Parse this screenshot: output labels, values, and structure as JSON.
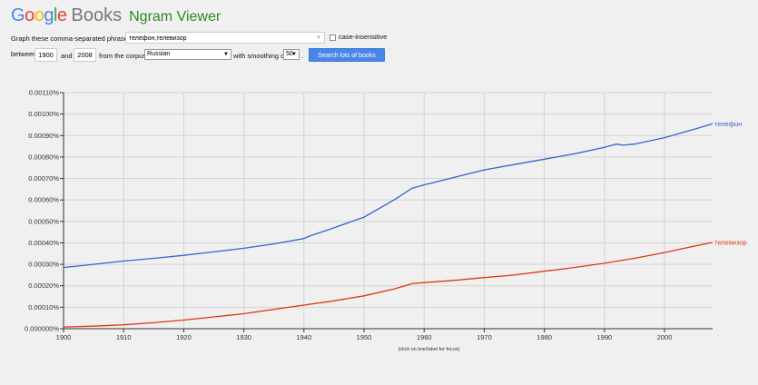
{
  "header": {
    "logo": {
      "G": "G",
      "o1": "o",
      "o2": "o",
      "g": "g",
      "l": "l",
      "e": "e"
    },
    "books": "Books",
    "viewer": "Ngram Viewer",
    "logo_colors": {
      "blue": "#4285f4",
      "red": "#ea4335",
      "yellow": "#fbbc05",
      "green": "#34a853"
    }
  },
  "form": {
    "phrases_label": "Graph these comma-separated phrases:",
    "phrases_value": "телефон,телевизор",
    "case_insensitive_label": "case-insensitive",
    "case_insensitive_checked": false,
    "between_label": "between",
    "start_year": "1900",
    "and_label": "and",
    "end_year": "2008",
    "corpus_label": "from the corpus",
    "corpus_value": "Russian",
    "smoothing_label": "with smoothing of",
    "smoothing_value": "50",
    "period": ".",
    "search_button": "Search lots of books"
  },
  "chart_data": {
    "type": "line",
    "x_range": [
      1900,
      2008
    ],
    "ylim": [
      0,
      0.0011
    ],
    "y_ticks": [
      "0.000000%",
      "0.00010%",
      "0.00020%",
      "0.00030%",
      "0.00040%",
      "0.00050%",
      "0.00060%",
      "0.00070%",
      "0.00080%",
      "0.00090%",
      "0.00100%",
      "0.00110%"
    ],
    "x_ticks": [
      "1900",
      "1910",
      "1920",
      "1930",
      "1940",
      "1950",
      "1960",
      "1970",
      "1980",
      "1990",
      "2000"
    ],
    "x_tick_values": [
      1900,
      1910,
      1920,
      1930,
      1940,
      1950,
      1960,
      1970,
      1980,
      1990,
      2000
    ],
    "note": "(click on line/label for focus)",
    "series": [
      {
        "name": "телефон",
        "color": "#3366cc",
        "points": [
          [
            1900,
            0.000285
          ],
          [
            1905,
            0.0003
          ],
          [
            1910,
            0.000315
          ],
          [
            1915,
            0.000328
          ],
          [
            1920,
            0.000342
          ],
          [
            1925,
            0.000358
          ],
          [
            1930,
            0.000375
          ],
          [
            1935,
            0.000395
          ],
          [
            1940,
            0.00042
          ],
          [
            1941,
            0.000432
          ],
          [
            1945,
            0.00047
          ],
          [
            1950,
            0.00052
          ],
          [
            1955,
            0.0006
          ],
          [
            1958,
            0.000655
          ],
          [
            1960,
            0.00067
          ],
          [
            1965,
            0.000705
          ],
          [
            1970,
            0.00074
          ],
          [
            1975,
            0.000765
          ],
          [
            1980,
            0.00079
          ],
          [
            1985,
            0.000815
          ],
          [
            1990,
            0.000845
          ],
          [
            1992,
            0.00086
          ],
          [
            1993,
            0.000855
          ],
          [
            1995,
            0.00086
          ],
          [
            2000,
            0.00089
          ],
          [
            2005,
            0.00093
          ],
          [
            2008,
            0.000955
          ]
        ]
      },
      {
        "name": "телевизор",
        "color": "#dc3912",
        "points": [
          [
            1900,
            8e-06
          ],
          [
            1905,
            1.2e-05
          ],
          [
            1910,
            1.8e-05
          ],
          [
            1915,
            2.8e-05
          ],
          [
            1920,
            4e-05
          ],
          [
            1925,
            5.5e-05
          ],
          [
            1930,
            7e-05
          ],
          [
            1935,
            9e-05
          ],
          [
            1940,
            0.00011
          ],
          [
            1945,
            0.00013
          ],
          [
            1950,
            0.000153
          ],
          [
            1955,
            0.000185
          ],
          [
            1958,
            0.00021
          ],
          [
            1960,
            0.000215
          ],
          [
            1965,
            0.000225
          ],
          [
            1970,
            0.000238
          ],
          [
            1975,
            0.00025
          ],
          [
            1980,
            0.000268
          ],
          [
            1985,
            0.000285
          ],
          [
            1990,
            0.000305
          ],
          [
            1995,
            0.000328
          ],
          [
            2000,
            0.000355
          ],
          [
            2005,
            0.000385
          ],
          [
            2008,
            0.000402
          ]
        ]
      }
    ]
  }
}
